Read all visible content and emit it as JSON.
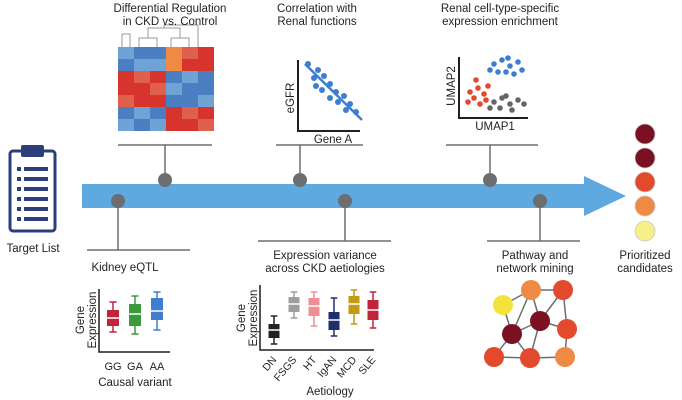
{
  "pipeline": {
    "start_label": "Target List",
    "end_label_line1": "Prioritized",
    "end_label_line2": "candidates"
  },
  "steps": {
    "differential": {
      "line1": "Differential Regulation",
      "line2": "in CKD vs. Control"
    },
    "correlation": {
      "line1": "Correlation with",
      "line2": "Renal functions",
      "x_label": "Gene A",
      "y_label": "eGFR"
    },
    "celltype": {
      "line1": "Renal cell-type-specific",
      "line2": "expression enrichment",
      "x_label": "UMAP1",
      "y_label": "UMAP2"
    },
    "eqtl": {
      "title": "Kidney eQTL",
      "y_label_line1": "Gene",
      "y_label_line2": "Expression",
      "x_label": "Causal variant",
      "genotypes": [
        "GG",
        "GA",
        "AA"
      ]
    },
    "variance": {
      "line1": "Expression variance",
      "line2": "across CKD aetiologies",
      "y_label_line1": "Gene",
      "y_label_line2": "Expression",
      "x_label": "Aetiology",
      "aetiologies": [
        "DN",
        "FSGS",
        "HT",
        "IgAN",
        "MCD",
        "SLE"
      ]
    },
    "pathway": {
      "line1": "Pathway and",
      "line2": "network mining"
    }
  },
  "colors": {
    "arrow": "#5ea9df",
    "connector": "#6d6e71",
    "clipboard": "#2d3e7c",
    "heatmap_red": "#d7342e",
    "heatmap_blue": "#4a7fc1",
    "heatmap_orange": "#ef8a45",
    "eqtl_boxes": [
      "#c0243a",
      "#3b9a3b",
      "#3d7ed3"
    ],
    "variance_boxes": [
      "#222222",
      "#9e9e9e",
      "#ef8f95",
      "#1f2f6e",
      "#c29a14",
      "#c0243a"
    ],
    "scatter_blue": "#3d7ed3",
    "umap_clusters": [
      "#e24a2b",
      "#3d7ed3",
      "#666666"
    ],
    "candidate_dots": [
      "#7a1022",
      "#7a1022",
      "#e24a2b",
      "#ef8a45",
      "#f6ef8a"
    ]
  }
}
